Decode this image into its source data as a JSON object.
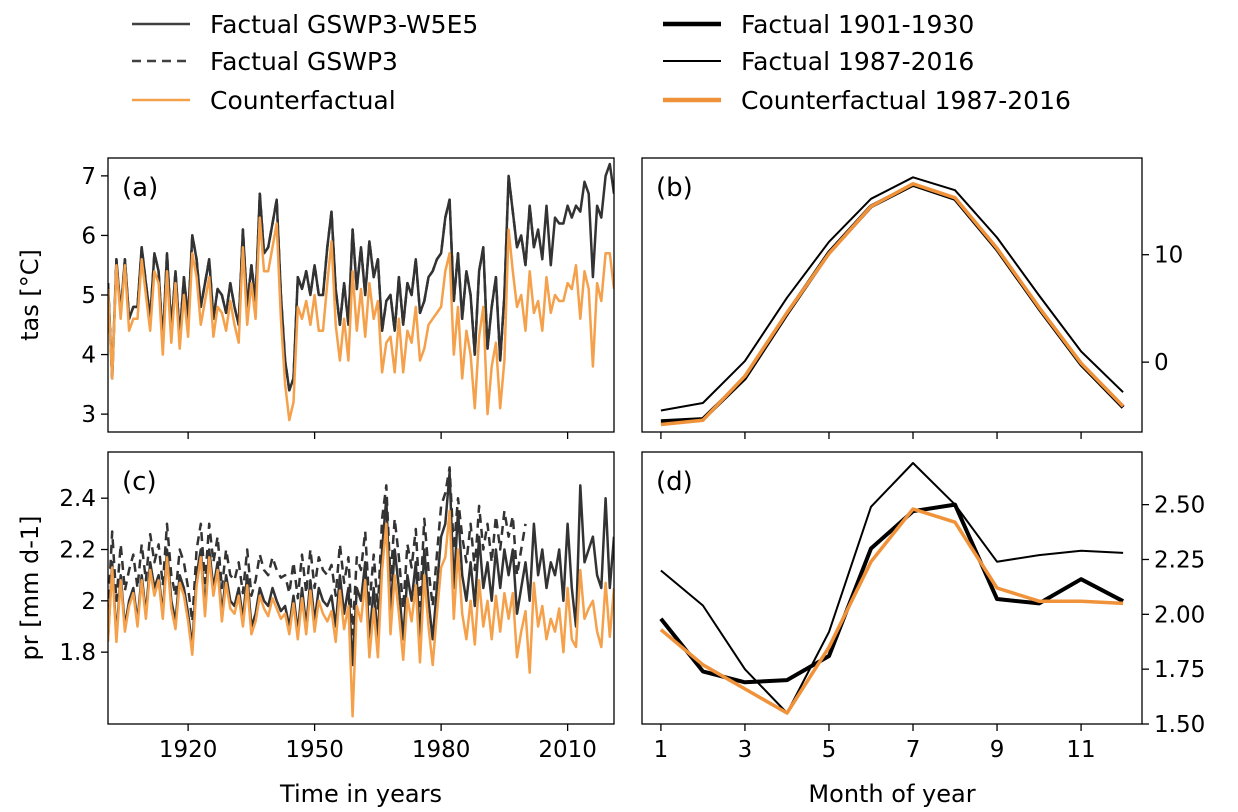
{
  "legend": {
    "items": [
      {
        "label": "Factual GSWP3-W5E5",
        "style": "solid",
        "color": "#404040"
      },
      {
        "label": "Factual GSWP3",
        "style": "dashed",
        "color": "#404040"
      },
      {
        "label": "Counterfactual",
        "style": "solid",
        "color": "#f5a04a"
      },
      {
        "label": "Factual 1901-1930",
        "style": "thick",
        "color": "#000000"
      },
      {
        "label": "Factual 1987-2016",
        "style": "thin",
        "color": "#000000"
      },
      {
        "label": "Counterfactual 1987-2016",
        "style": "thick",
        "color": "#f0923a"
      }
    ]
  },
  "colors": {
    "factual": "#333333",
    "counterfactual": "#f5a04a",
    "clim_cf": "#f0923a",
    "black": "#000000"
  },
  "chart_data": [
    {
      "id": "a",
      "panel_label": "(a)",
      "type": "line",
      "ylabel": "tas [°C]",
      "xlabel": "",
      "xlim": [
        1901,
        2021
      ],
      "ylim": [
        2.7,
        7.3
      ],
      "xticks": [
        1920,
        1950,
        1980,
        2010
      ],
      "xticks_labeled": false,
      "yticks": [
        3,
        4,
        5,
        6,
        7
      ],
      "yaxis_side": "left",
      "x_start": 1901,
      "series": [
        {
          "name": "Factual GSWP3-W5E5",
          "color": "#333333",
          "width": 2.5,
          "dash": "",
          "values": [
            5.2,
            3.6,
            5.6,
            4.7,
            5.6,
            4.6,
            4.8,
            4.8,
            5.8,
            5.2,
            4.6,
            5.7,
            5.4,
            4.2,
            5.7,
            4.4,
            5.4,
            4.3,
            5.3,
            4.6,
            6.0,
            5.6,
            4.8,
            5.2,
            5.6,
            4.6,
            5.1,
            5.0,
            4.7,
            5.2,
            4.8,
            4.5,
            6.1,
            4.8,
            5.5,
            4.9,
            6.7,
            5.7,
            5.8,
            6.2,
            6.6,
            5.0,
            3.9,
            3.4,
            3.6,
            5.3,
            5.1,
            5.4,
            5.0,
            5.5,
            5.0,
            5.0,
            5.8,
            6.4,
            5.1,
            4.5,
            5.2,
            4.5,
            6.1,
            5.1,
            5.8,
            5.0,
            5.9,
            5.3,
            5.6,
            4.4,
            4.9,
            5.0,
            4.4,
            5.3,
            4.5,
            5.2,
            5.0,
            5.6,
            4.7,
            4.9,
            5.3,
            5.4,
            5.6,
            5.7,
            6.3,
            6.6,
            4.9,
            5.7,
            4.6,
            5.4,
            5.0,
            4.0,
            5.4,
            5.8,
            4.1,
            4.8,
            5.3,
            3.9,
            5.0,
            7.0,
            6.4,
            5.8,
            6.0,
            5.5,
            6.5,
            5.8,
            6.1,
            5.6,
            6.5,
            5.5,
            6.3,
            6.2,
            6.2,
            6.5,
            6.3,
            6.5,
            6.4,
            6.9,
            6.7,
            5.3,
            6.5,
            6.3,
            7.0,
            7.2,
            6.7
          ]
        },
        {
          "name": "Factual GSWP3",
          "color": "#333333",
          "width": 2.5,
          "dash": "9 6",
          "values": [
            5.2,
            3.6,
            5.6,
            4.7,
            5.6,
            4.6,
            4.8,
            4.8,
            5.8,
            5.2,
            4.6,
            5.7,
            5.4,
            4.2,
            5.7,
            4.4,
            5.4,
            4.3,
            5.3,
            4.6,
            6.0,
            5.6,
            4.8,
            5.2,
            5.6,
            4.6,
            5.1,
            5.0,
            4.7,
            5.2,
            4.8,
            4.5,
            6.1,
            4.8,
            5.5,
            4.9,
            6.7,
            5.7,
            5.8,
            6.2,
            6.6,
            5.0,
            3.9,
            3.4,
            3.6,
            5.3,
            5.1,
            5.4,
            5.0,
            5.5,
            5.0,
            5.0,
            5.8,
            6.4,
            5.1,
            4.5,
            5.2,
            4.5,
            6.1,
            5.1,
            5.8,
            5.0,
            5.9,
            5.3,
            5.6,
            4.4,
            4.9,
            5.0,
            4.4,
            5.3,
            4.5,
            5.2,
            5.0,
            5.6,
            4.7,
            4.9,
            5.3,
            5.4,
            5.6,
            5.7,
            6.3,
            6.6,
            4.9,
            5.7,
            4.6,
            5.4,
            5.0,
            4.0,
            5.4,
            5.8,
            4.1,
            4.8,
            5.3,
            3.9,
            5.0,
            7.0,
            6.4,
            5.8,
            6.0,
            5.5,
            6.5,
            5.8
          ]
        },
        {
          "name": "Counterfactual",
          "color": "#f5a04a",
          "width": 2.5,
          "dash": "",
          "values": [
            5.1,
            3.6,
            5.5,
            4.6,
            5.5,
            4.4,
            4.6,
            4.6,
            5.6,
            5.0,
            4.4,
            5.4,
            5.2,
            4.0,
            5.4,
            4.2,
            5.2,
            4.1,
            5.0,
            4.3,
            5.7,
            5.3,
            4.5,
            4.9,
            5.3,
            4.3,
            4.8,
            4.7,
            4.4,
            4.9,
            4.5,
            4.2,
            5.8,
            4.5,
            5.2,
            4.6,
            6.3,
            5.4,
            5.4,
            5.8,
            6.2,
            4.6,
            3.5,
            2.9,
            3.2,
            4.8,
            4.6,
            4.9,
            4.5,
            5.0,
            4.4,
            4.4,
            5.2,
            5.9,
            4.5,
            3.9,
            4.6,
            3.9,
            5.4,
            4.4,
            5.1,
            4.3,
            5.2,
            4.6,
            4.9,
            3.7,
            4.2,
            4.3,
            3.7,
            4.6,
            3.7,
            4.4,
            4.2,
            4.8,
            3.9,
            4.1,
            4.5,
            4.6,
            4.7,
            4.8,
            5.4,
            5.7,
            4.0,
            4.8,
            3.6,
            4.4,
            4.0,
            3.1,
            4.3,
            4.8,
            3.0,
            3.8,
            4.2,
            3.1,
            3.9,
            6.1,
            5.4,
            4.8,
            5.0,
            4.4,
            5.4,
            4.7,
            4.9,
            4.4,
            5.3,
            4.7,
            5.0,
            4.9,
            4.9,
            5.2,
            5.1,
            5.5,
            4.6,
            5.4,
            5.1,
            3.8,
            5.2,
            4.9,
            5.7,
            5.7,
            5.1
          ]
        }
      ]
    },
    {
      "id": "b",
      "panel_label": "(b)",
      "type": "line",
      "ylabel": "",
      "xlabel": "",
      "xlim": [
        0.55,
        12.45
      ],
      "ylim": [
        -6.5,
        19
      ],
      "xticks": [
        1,
        3,
        5,
        7,
        9,
        11
      ],
      "xticks_labeled": false,
      "yticks": [
        0,
        10
      ],
      "yaxis_side": "right",
      "x": [
        1,
        2,
        3,
        4,
        5,
        6,
        7,
        8,
        9,
        10,
        11,
        12
      ],
      "series": [
        {
          "name": "Factual 1901-1930",
          "color": "#000000",
          "width": 4,
          "dash": "",
          "values": [
            -5.5,
            -5.3,
            -1.5,
            4.5,
            10.2,
            14.5,
            16.5,
            15.2,
            10.5,
            5.0,
            -0.2,
            -4.2
          ]
        },
        {
          "name": "Factual 1987-2016",
          "color": "#000000",
          "width": 2,
          "dash": "",
          "values": [
            -4.5,
            -3.8,
            0.1,
            6.0,
            11.2,
            15.2,
            17.2,
            16.0,
            11.6,
            6.2,
            1.0,
            -2.8
          ]
        },
        {
          "name": "Counterfactual 1987-2016",
          "color": "#f0923a",
          "width": 3.5,
          "dash": "",
          "values": [
            -5.8,
            -5.4,
            -1.3,
            4.6,
            10.1,
            14.5,
            16.6,
            15.3,
            10.6,
            5.1,
            -0.1,
            -4.1
          ]
        }
      ]
    },
    {
      "id": "c",
      "panel_label": "(c)",
      "type": "line",
      "ylabel": "pr [mm d-1]",
      "xlabel": "Time in years",
      "xlim": [
        1901,
        2021
      ],
      "ylim": [
        1.52,
        2.58
      ],
      "xticks": [
        1920,
        1950,
        1980,
        2010
      ],
      "xticks_labeled": true,
      "yticks": [
        1.8,
        2.0,
        2.2,
        2.4
      ],
      "yaxis_side": "left",
      "x_start": 1901,
      "series": [
        {
          "name": "Factual GSWP3-W5E5",
          "color": "#333333",
          "width": 2.5,
          "dash": "",
          "values": [
            1.85,
            2.15,
            1.86,
            2.1,
            1.9,
            2.0,
            2.05,
            1.92,
            2.1,
            1.95,
            2.15,
            2.05,
            2.1,
            1.95,
            2.2,
            2.0,
            1.92,
            2.1,
            2.05,
            1.95,
            1.82,
            2.1,
            2.2,
            1.97,
            2.2,
            2.05,
            2.15,
            1.95,
            2.1,
            2.0,
            1.98,
            2.05,
            1.93,
            2.1,
            1.9,
            1.95,
            2.05,
            2.0,
            1.98,
            2.05,
            2.0,
            1.96,
            1.98,
            1.9,
            2.02,
            1.88,
            2.05,
            1.9,
            2.08,
            1.92,
            2.05,
            2.0,
            1.98,
            2.02,
            1.9,
            2.1,
            1.95,
            2.05,
            1.75,
            2.05,
            2.0,
            2.15,
            1.85,
            2.05,
            1.85,
            2.2,
            2.4,
            1.95,
            2.2,
            2.05,
            1.85,
            2.1,
            2.0,
            2.15,
            1.85,
            2.2,
            2.0,
            1.85,
            2.05,
            2.25,
            2.3,
            2.5,
            2.05,
            2.35,
            2.1,
            2.0,
            2.15,
            1.98,
            2.25,
            2.05,
            2.15,
            2.0,
            2.2,
            2.05,
            2.2,
            2.1,
            2.2,
            1.95,
            2.05,
            2.15,
            2.0,
            2.3,
            2.1,
            2.2,
            2.05,
            2.15,
            2.1,
            2.2,
            2.0,
            2.3,
            2.05,
            1.9,
            2.45,
            2.15,
            2.2,
            2.25,
            2.1,
            2.05,
            2.4,
            2.05,
            2.25
          ]
        },
        {
          "name": "Factual GSWP3",
          "color": "#333333",
          "width": 2.5,
          "dash": "9 6",
          "values": [
            1.95,
            2.27,
            2.0,
            2.22,
            2.04,
            2.12,
            2.18,
            2.05,
            2.22,
            2.08,
            2.26,
            2.15,
            2.22,
            2.06,
            2.3,
            2.1,
            2.02,
            2.2,
            2.15,
            2.05,
            1.92,
            2.2,
            2.3,
            2.07,
            2.3,
            2.15,
            2.25,
            2.05,
            2.2,
            2.1,
            2.08,
            2.15,
            2.03,
            2.2,
            2.02,
            2.08,
            2.18,
            2.12,
            2.1,
            2.17,
            2.12,
            2.09,
            2.1,
            2.03,
            2.15,
            2.01,
            2.18,
            2.03,
            2.2,
            2.05,
            2.17,
            2.12,
            2.1,
            2.14,
            2.02,
            2.22,
            2.07,
            2.17,
            1.87,
            2.17,
            2.12,
            2.27,
            1.98,
            2.18,
            1.97,
            2.32,
            2.45,
            2.08,
            2.32,
            2.17,
            1.97,
            2.22,
            2.13,
            2.28,
            1.98,
            2.32,
            2.12,
            1.98,
            2.18,
            2.37,
            2.42,
            2.52,
            2.2,
            2.4,
            2.25,
            2.15,
            2.3,
            2.12,
            2.37,
            2.2,
            2.3,
            2.15,
            2.33,
            2.2,
            2.35,
            2.25,
            2.33,
            2.1,
            2.2,
            2.3
          ]
        },
        {
          "name": "Counterfactual",
          "color": "#f5a04a",
          "width": 2.5,
          "dash": "",
          "values": [
            1.84,
            2.13,
            1.84,
            2.08,
            1.88,
            1.98,
            2.03,
            1.9,
            2.08,
            1.93,
            2.12,
            2.02,
            2.08,
            1.93,
            2.17,
            1.97,
            1.89,
            2.07,
            2.02,
            1.92,
            1.79,
            2.06,
            2.17,
            1.94,
            2.17,
            2.02,
            2.12,
            1.92,
            2.07,
            1.97,
            1.95,
            2.02,
            1.9,
            2.06,
            1.87,
            1.92,
            2.02,
            1.97,
            1.94,
            2.01,
            1.97,
            1.93,
            1.95,
            1.87,
            1.99,
            1.85,
            2.01,
            1.87,
            2.04,
            1.88,
            2.0,
            1.95,
            1.92,
            1.96,
            1.84,
            2.04,
            1.89,
            1.98,
            1.55,
            1.98,
            1.92,
            2.08,
            1.78,
            1.97,
            1.78,
            2.12,
            2.3,
            1.87,
            2.1,
            1.95,
            1.77,
            2.01,
            1.92,
            2.06,
            1.76,
            2.1,
            1.9,
            1.75,
            1.95,
            2.13,
            2.17,
            2.35,
            1.93,
            2.2,
            1.95,
            1.85,
            2.0,
            1.83,
            2.08,
            1.9,
            2.0,
            1.85,
            2.02,
            1.88,
            2.03,
            1.93,
            2.03,
            1.78,
            1.88,
            1.96,
            1.72,
            2.07,
            1.9,
            1.98,
            1.85,
            1.93,
            1.88,
            1.97,
            1.8,
            2.05,
            1.85,
            1.82,
            2.12,
            1.93,
            1.97,
            2.0,
            1.88,
            1.82,
            2.07,
            1.86,
            2.05
          ]
        }
      ]
    },
    {
      "id": "d",
      "panel_label": "(d)",
      "type": "line",
      "ylabel": "",
      "xlabel": "Month of year",
      "xlim": [
        0.55,
        12.45
      ],
      "ylim": [
        1.5,
        2.74
      ],
      "xticks": [
        1,
        3,
        5,
        7,
        9,
        11
      ],
      "xticks_labeled": true,
      "yticks": [
        1.5,
        1.75,
        2.0,
        2.25,
        2.5
      ],
      "ytick_labels": [
        "1.50",
        "1.75",
        "2.00",
        "2.25",
        "2.50"
      ],
      "yaxis_side": "right",
      "x": [
        1,
        2,
        3,
        4,
        5,
        6,
        7,
        8,
        9,
        10,
        11,
        12
      ],
      "series": [
        {
          "name": "Factual 1901-1930",
          "color": "#000000",
          "width": 4,
          "dash": "",
          "values": [
            1.98,
            1.74,
            1.69,
            1.7,
            1.81,
            2.3,
            2.47,
            2.5,
            2.07,
            2.05,
            2.16,
            2.06
          ]
        },
        {
          "name": "Factual 1987-2016",
          "color": "#000000",
          "width": 2,
          "dash": "",
          "values": [
            2.2,
            2.04,
            1.75,
            1.55,
            1.92,
            2.49,
            2.69,
            2.5,
            2.24,
            2.27,
            2.29,
            2.28
          ]
        },
        {
          "name": "Counterfactual 1987-2016",
          "color": "#f0923a",
          "width": 3.5,
          "dash": "",
          "values": [
            1.93,
            1.77,
            1.66,
            1.55,
            1.85,
            2.24,
            2.48,
            2.42,
            2.12,
            2.06,
            2.06,
            2.05
          ]
        }
      ]
    }
  ]
}
